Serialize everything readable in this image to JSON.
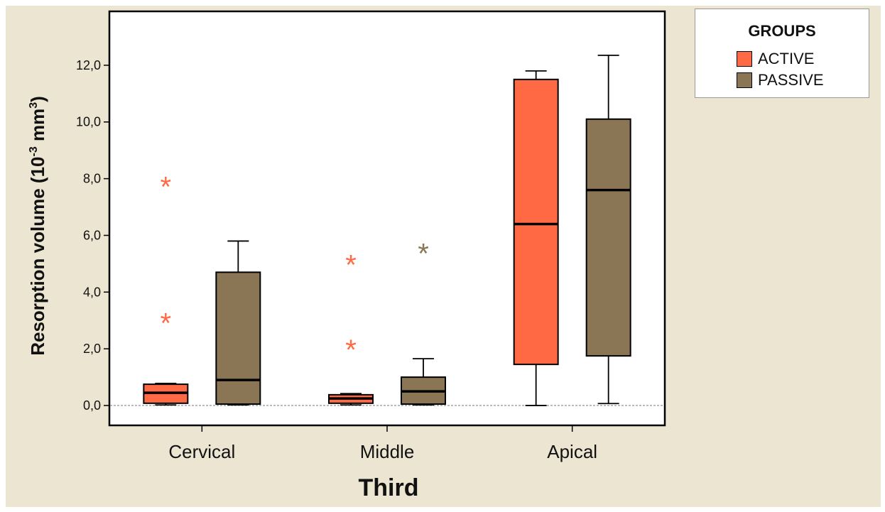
{
  "chart_data": {
    "type": "boxplot",
    "xlabel": "Third",
    "ylabel": {
      "base": "Resorption volume (10",
      "exp1": "-3",
      "unit": " mm",
      "exp2": "3",
      "close": ")"
    },
    "categories": [
      "Cervical",
      "Middle",
      "Apical"
    ],
    "ylim": [
      -0.7,
      13.9
    ],
    "yticks": [
      0,
      2,
      4,
      6,
      8,
      10,
      12
    ],
    "ytick_labels": [
      "0,0",
      "2,0",
      "4,0",
      "6,0",
      "8,0",
      "10,0",
      "12,0"
    ],
    "reference_line": 0,
    "grid": false,
    "legend": {
      "title": "GROUPS",
      "position": "top-right"
    },
    "series": [
      {
        "name": "ACTIVE",
        "color": "#ff6a45",
        "boxes": [
          {
            "whisker_low": 0.02,
            "q1": 0.08,
            "median": 0.45,
            "q3": 0.75,
            "whisker_high": 0.78,
            "outliers": [
              7.8,
              3.0
            ]
          },
          {
            "whisker_low": 0.02,
            "q1": 0.08,
            "median": 0.25,
            "q3": 0.38,
            "whisker_high": 0.42,
            "outliers": [
              5.05,
              2.05
            ]
          },
          {
            "whisker_low": 0.0,
            "q1": 1.45,
            "median": 6.4,
            "q3": 11.5,
            "whisker_high": 11.8,
            "outliers": []
          }
        ]
      },
      {
        "name": "PASSIVE",
        "color": "#8a7654",
        "boxes": [
          {
            "whisker_low": 0.02,
            "q1": 0.05,
            "median": 0.9,
            "q3": 4.7,
            "whisker_high": 5.8,
            "outliers": []
          },
          {
            "whisker_low": 0.02,
            "q1": 0.05,
            "median": 0.5,
            "q3": 1.0,
            "whisker_high": 1.65,
            "outliers": [
              5.45
            ]
          },
          {
            "whisker_low": 0.07,
            "q1": 1.75,
            "median": 7.6,
            "q3": 10.1,
            "whisker_high": 12.35,
            "outliers": []
          }
        ]
      }
    ]
  }
}
